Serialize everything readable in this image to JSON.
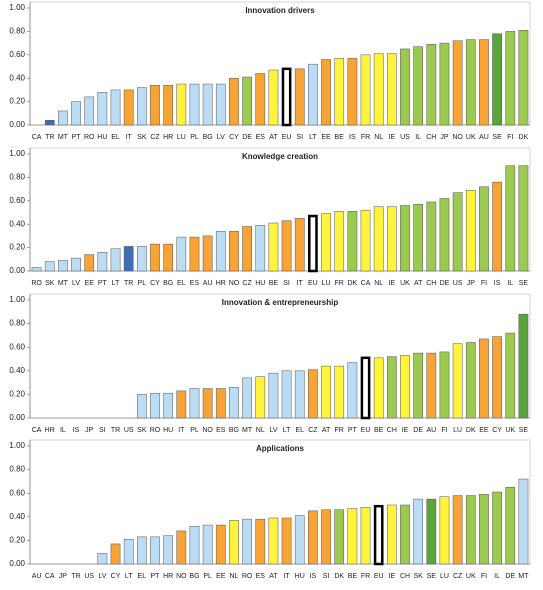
{
  "chart_data": [
    {
      "type": "bar",
      "title": "Innovation drivers",
      "categories": [
        "CA",
        "TR",
        "MT",
        "PT",
        "RO",
        "HU",
        "EL",
        "IT",
        "SK",
        "CZ",
        "HR",
        "LU",
        "PL",
        "BG",
        "LV",
        "CY",
        "DE",
        "ES",
        "AT",
        "EU",
        "SI",
        "LT",
        "EE",
        "BE",
        "IS",
        "FR",
        "NL",
        "IE",
        "US",
        "IL",
        "CH",
        "JP",
        "NO",
        "UK",
        "AU",
        "SE",
        "FI",
        "DK"
      ],
      "values": [
        0,
        0.04,
        0.12,
        0.2,
        0.24,
        0.28,
        0.3,
        0.3,
        0.32,
        0.34,
        0.34,
        0.35,
        0.35,
        0.35,
        0.35,
        0.4,
        0.41,
        0.44,
        0.47,
        0.48,
        0.48,
        0.52,
        0.56,
        0.57,
        0.57,
        0.6,
        0.61,
        0.61,
        0.65,
        0.67,
        0.69,
        0.7,
        0.72,
        0.73,
        0.73,
        0.78,
        0.8,
        0.81
      ],
      "colors": [
        "#bcdcf4",
        "#3d6eb5",
        "#bcdcf4",
        "#bcdcf4",
        "#bcdcf4",
        "#bcdcf4",
        "#bcdcf4",
        "#f7a335",
        "#bcdcf4",
        "#f7a335",
        "#f7a335",
        "#fff33b",
        "#bcdcf4",
        "#bcdcf4",
        "#bcdcf4",
        "#f7a335",
        "#9cc94f",
        "#f7a335",
        "#fff33b",
        "#ffffff",
        "#f7a335",
        "#bcdcf4",
        "#f7a335",
        "#fff33b",
        "#f7a335",
        "#fff33b",
        "#fff33b",
        "#fff33b",
        "#9cc94f",
        "#9cc94f",
        "#9cc94f",
        "#9cc94f",
        "#f7a335",
        "#9cc94f",
        "#f7a335",
        "#5aa539",
        "#9cc94f",
        "#9cc94f"
      ],
      "ylim": [
        0,
        1
      ],
      "yticks": [
        {
          "value": 0,
          "label": "0.00"
        },
        {
          "value": 0.2,
          "label": "0.20"
        },
        {
          "value": 0.4,
          "label": "0.40"
        },
        {
          "value": 0.6,
          "label": "0.60"
        },
        {
          "value": 0.8,
          "label": "0.80"
        },
        {
          "value": 1,
          "label": "1.00"
        }
      ]
    },
    {
      "type": "bar",
      "title": "Knowledge creation",
      "categories": [
        "RO",
        "SK",
        "MT",
        "LV",
        "EE",
        "PT",
        "LT",
        "TR",
        "PL",
        "CY",
        "BG",
        "EL",
        "ES",
        "AU",
        "HR",
        "NO",
        "CZ",
        "HU",
        "BE",
        "SI",
        "IT",
        "EU",
        "LU",
        "FR",
        "DK",
        "CA",
        "NL",
        "IE",
        "UK",
        "AT",
        "CH",
        "DE",
        "US",
        "JP",
        "FI",
        "IS",
        "IL",
        "SE"
      ],
      "values": [
        0.03,
        0.08,
        0.09,
        0.11,
        0.14,
        0.16,
        0.19,
        0.21,
        0.21,
        0.23,
        0.23,
        0.29,
        0.29,
        0.3,
        0.34,
        0.34,
        0.38,
        0.39,
        0.41,
        0.43,
        0.45,
        0.47,
        0.49,
        0.51,
        0.51,
        0.52,
        0.55,
        0.55,
        0.56,
        0.57,
        0.59,
        0.62,
        0.67,
        0.69,
        0.72,
        0.76,
        0.9,
        0.9
      ],
      "colors": [
        "#bcdcf4",
        "#bcdcf4",
        "#bcdcf4",
        "#bcdcf4",
        "#f7a335",
        "#bcdcf4",
        "#bcdcf4",
        "#3d6eb5",
        "#bcdcf4",
        "#f7a335",
        "#f7a335",
        "#bcdcf4",
        "#f7a335",
        "#f7a335",
        "#bcdcf4",
        "#f7a335",
        "#f7a335",
        "#bcdcf4",
        "#fff33b",
        "#f7a335",
        "#f7a335",
        "#ffffff",
        "#fff33b",
        "#fff33b",
        "#9cc94f",
        "#fff33b",
        "#fff33b",
        "#fff33b",
        "#9cc94f",
        "#9cc94f",
        "#9cc94f",
        "#9cc94f",
        "#9cc94f",
        "#fff33b",
        "#9cc94f",
        "#f7a335",
        "#9cc94f",
        "#9cc94f"
      ],
      "ylim": [
        0,
        1
      ],
      "yticks": [
        {
          "value": 0,
          "label": "0.00"
        },
        {
          "value": 0.2,
          "label": "0.20"
        },
        {
          "value": 0.4,
          "label": "0.40"
        },
        {
          "value": 0.6,
          "label": "0.60"
        },
        {
          "value": 0.8,
          "label": "0.80"
        },
        {
          "value": 1,
          "label": "1.00"
        }
      ]
    },
    {
      "type": "bar",
      "title": "Innovation & entrepreneurship",
      "categories": [
        "CA",
        "HR",
        "IL",
        "IS",
        "JP",
        "SI",
        "TR",
        "US",
        "SK",
        "RO",
        "HU",
        "IT",
        "PL",
        "NO",
        "ES",
        "BG",
        "MT",
        "NL",
        "LV",
        "LT",
        "EL",
        "CZ",
        "AT",
        "FR",
        "PT",
        "EU",
        "BE",
        "CH",
        "IE",
        "DE",
        "AU",
        "FI",
        "LU",
        "DK",
        "EE",
        "CY",
        "UK",
        "SE"
      ],
      "values": [
        0,
        0,
        0,
        0,
        0,
        0,
        0,
        0,
        0.2,
        0.21,
        0.21,
        0.23,
        0.25,
        0.25,
        0.25,
        0.26,
        0.34,
        0.35,
        0.38,
        0.4,
        0.4,
        0.41,
        0.44,
        0.44,
        0.47,
        0.51,
        0.51,
        0.52,
        0.53,
        0.55,
        0.55,
        0.56,
        0.63,
        0.64,
        0.67,
        0.69,
        0.72,
        0.88
      ],
      "colors": [
        "#bcdcf4",
        "#bcdcf4",
        "#bcdcf4",
        "#bcdcf4",
        "#bcdcf4",
        "#bcdcf4",
        "#bcdcf4",
        "#bcdcf4",
        "#bcdcf4",
        "#bcdcf4",
        "#bcdcf4",
        "#f7a335",
        "#bcdcf4",
        "#f7a335",
        "#f7a335",
        "#bcdcf4",
        "#bcdcf4",
        "#fff33b",
        "#bcdcf4",
        "#bcdcf4",
        "#bcdcf4",
        "#f7a335",
        "#fff33b",
        "#fff33b",
        "#bcdcf4",
        "#ffffff",
        "#fff33b",
        "#9cc94f",
        "#fff33b",
        "#9cc94f",
        "#f7a335",
        "#9cc94f",
        "#fff33b",
        "#9cc94f",
        "#f7a335",
        "#f7a335",
        "#9cc94f",
        "#5aa539"
      ],
      "ylim": [
        0,
        1
      ],
      "yticks": [
        {
          "value": 0,
          "label": "0.00"
        },
        {
          "value": 0.2,
          "label": "0.20"
        },
        {
          "value": 0.4,
          "label": "0.40"
        },
        {
          "value": 0.6,
          "label": "0.60"
        },
        {
          "value": 0.8,
          "label": "0.80"
        },
        {
          "value": 1,
          "label": "1.00"
        }
      ]
    },
    {
      "type": "bar",
      "title": "Applications",
      "categories": [
        "AU",
        "CA",
        "JP",
        "TR",
        "US",
        "LV",
        "CY",
        "LT",
        "EL",
        "PT",
        "HR",
        "NO",
        "BG",
        "PL",
        "EE",
        "NL",
        "RO",
        "ES",
        "AT",
        "IT",
        "HU",
        "IS",
        "SI",
        "DK",
        "BE",
        "FR",
        "EU",
        "IE",
        "CH",
        "SK",
        "SE",
        "LU",
        "CZ",
        "UK",
        "FI",
        "IL",
        "DE",
        "MT"
      ],
      "values": [
        0,
        0,
        0,
        0,
        0,
        0.09,
        0.17,
        0.21,
        0.23,
        0.23,
        0.24,
        0.28,
        0.32,
        0.33,
        0.33,
        0.37,
        0.38,
        0.38,
        0.39,
        0.39,
        0.41,
        0.45,
        0.46,
        0.46,
        0.47,
        0.48,
        0.49,
        0.5,
        0.5,
        0.55,
        0.55,
        0.57,
        0.58,
        0.58,
        0.59,
        0.61,
        0.65,
        0.72
      ],
      "colors": [
        "#bcdcf4",
        "#bcdcf4",
        "#bcdcf4",
        "#bcdcf4",
        "#bcdcf4",
        "#bcdcf4",
        "#f7a335",
        "#bcdcf4",
        "#bcdcf4",
        "#bcdcf4",
        "#bcdcf4",
        "#f7a335",
        "#bcdcf4",
        "#bcdcf4",
        "#f7a335",
        "#fff33b",
        "#bcdcf4",
        "#f7a335",
        "#fff33b",
        "#f7a335",
        "#bcdcf4",
        "#f7a335",
        "#f7a335",
        "#9cc94f",
        "#fff33b",
        "#fff33b",
        "#ffffff",
        "#fff33b",
        "#9cc94f",
        "#bcdcf4",
        "#5aa539",
        "#fff33b",
        "#f7a335",
        "#9cc94f",
        "#9cc94f",
        "#9cc94f",
        "#9cc94f",
        "#bcdcf4"
      ],
      "ylim": [
        0,
        1
      ],
      "yticks": [
        {
          "value": 0,
          "label": "0.00"
        },
        {
          "value": 0.2,
          "label": "0.20"
        },
        {
          "value": 0.4,
          "label": "0.40"
        },
        {
          "value": 0.6,
          "label": "0.60"
        },
        {
          "value": 0.8,
          "label": "0.80"
        },
        {
          "value": 1,
          "label": "1.00"
        }
      ]
    }
  ]
}
